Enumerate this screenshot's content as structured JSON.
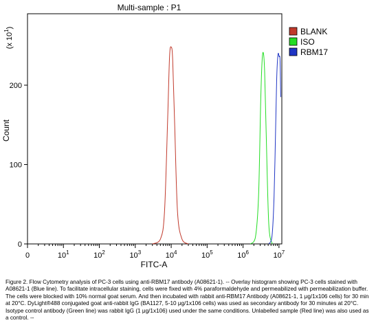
{
  "chart_data": {
    "type": "line",
    "title": "Multi-sample : P1",
    "xlabel": "FITC-A",
    "ylabel": "Count",
    "y_multiplier_label": "(x 10",
    "y_multiplier_exp": "1",
    "x_scale": "log",
    "xlim": [
      1,
      12000000
    ],
    "ylim": [
      0,
      290
    ],
    "y_ticks": [
      0,
      100,
      200
    ],
    "x_ticks": [
      {
        "value": 1,
        "base": "0",
        "exp": ""
      },
      {
        "value": 10,
        "base": "10",
        "exp": "1"
      },
      {
        "value": 100,
        "base": "10",
        "exp": "2"
      },
      {
        "value": 1000,
        "base": "10",
        "exp": "3"
      },
      {
        "value": 10000,
        "base": "10",
        "exp": "4"
      },
      {
        "value": 100000,
        "base": "10",
        "exp": "5"
      },
      {
        "value": 1000000,
        "base": "10",
        "exp": "6"
      },
      {
        "value": 10000000,
        "base": "10",
        "exp": "7"
      }
    ],
    "grid": false,
    "legend_position": "top-right",
    "series": [
      {
        "name": "BLANK",
        "color": "#c0392b",
        "x": [
          3000,
          5000,
          6500,
          8000,
          9000,
          10000,
          11000,
          12500,
          15000,
          20000,
          30000
        ],
        "y": [
          0,
          6,
          40,
          160,
          236,
          248,
          232,
          150,
          40,
          6,
          0
        ]
      },
      {
        "name": "ISO",
        "color": "#22dd22",
        "x": [
          1600000,
          2200000,
          2700000,
          3100000,
          3400000,
          3700000,
          4000000,
          4400000,
          5200000,
          6500000
        ],
        "y": [
          0,
          8,
          60,
          180,
          232,
          240,
          215,
          140,
          25,
          0
        ]
      },
      {
        "name": "RBM17",
        "color": "#1f35c4",
        "x": [
          5200000,
          6400000,
          7300000,
          8100000,
          8600000,
          9000000,
          9500000,
          10100000,
          10700000,
          11200000
        ],
        "y": [
          0,
          10,
          60,
          150,
          205,
          228,
          240,
          236,
          232,
          185
        ]
      }
    ]
  },
  "caption": "Figure 2. Flow Cytometry analysis of PC-3 cells using anti-RBM17 antibody (A08621-1).  -- Overlay histogram showing PC-3 cells stained with A08621-1 (Blue line). To facilitate intracellular staining, cells were fixed with 4% paraformaldehyde and permeabilized with permeabilization buffer. The cells were blocked with 10% normal goat serum. And then incubated with rabbit anti-RBM17 Antibody (A08621-1, 1 μg/1x106 cells) for 30 min at 20°C. DyLight®488 conjugated goat anti-rabbit IgG (BA1127, 5-10 μg/1x106 cells) was used as secondary antibody for 30 minutes at 20°C. Isotype control antibody (Green line) was rabbit IgG (1 μg/1x106) used under the same conditions. Unlabelled sample (Red line) was also used as a control. --"
}
